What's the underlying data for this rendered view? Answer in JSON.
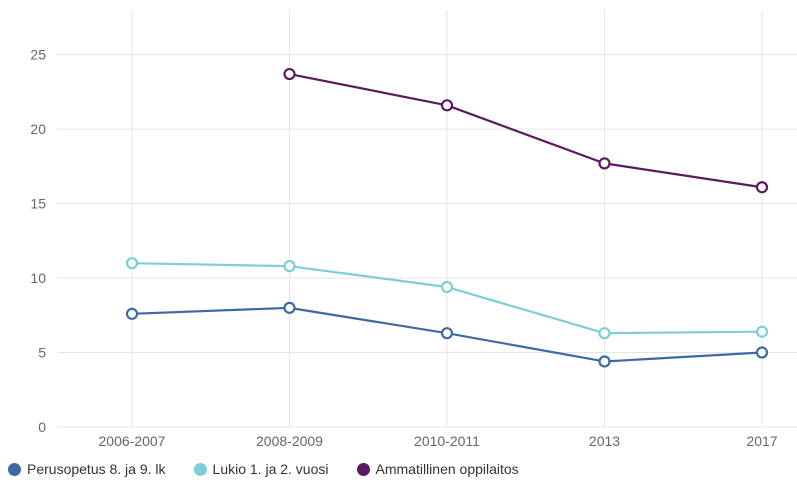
{
  "chart_data": {
    "type": "line",
    "title": "",
    "xlabel": "",
    "ylabel": "",
    "categories": [
      "2006-2007",
      "2008-2009",
      "2010-2011",
      "2013",
      "2017"
    ],
    "ylim": [
      0,
      28
    ],
    "yticks": [
      0,
      5,
      10,
      15,
      20,
      25
    ],
    "grid": true,
    "legend_position": "bottom-left",
    "series": [
      {
        "name": "Perusopetus 8. ja 9. lk",
        "color": "#3f6aa1",
        "values": [
          7.6,
          8.0,
          6.3,
          4.4,
          5.0
        ]
      },
      {
        "name": "Lukio 1. ja 2. vuosi",
        "color": "#7ccfd4",
        "values": [
          11.0,
          10.8,
          9.4,
          6.3,
          6.4
        ]
      },
      {
        "name": "Ammatillinen oppilaitos",
        "color": "#5c1a5e",
        "values": [
          null,
          23.7,
          21.6,
          17.7,
          16.1
        ]
      }
    ]
  }
}
